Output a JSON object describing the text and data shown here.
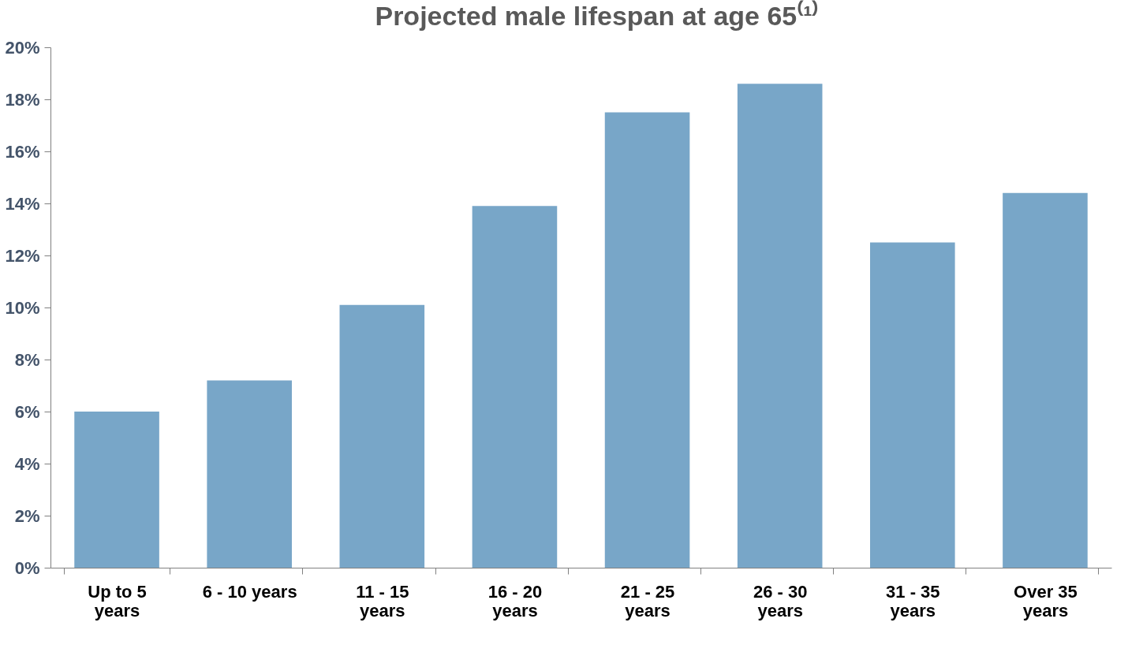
{
  "chart_data": {
    "type": "bar",
    "title": "Projected male lifespan at age 65⁽¹⁾",
    "categories": [
      "Up to 5 years",
      "6 - 10 years",
      "11 - 15 years",
      "16 - 20 years",
      "21 - 25 years",
      "26 - 30 years",
      "31 - 35 years",
      "Over 35 years"
    ],
    "values": [
      6.0,
      7.2,
      10.1,
      13.9,
      17.5,
      18.6,
      12.5,
      14.4
    ],
    "color": "#78a6c8",
    "ylim": [
      0,
      20
    ],
    "yticks": [
      {
        "value": 0,
        "label": "0%"
      },
      {
        "value": 2,
        "label": "2%"
      },
      {
        "value": 4,
        "label": "4%"
      },
      {
        "value": 6,
        "label": "6%"
      },
      {
        "value": 8,
        "label": "8%"
      },
      {
        "value": 10,
        "label": "10%"
      },
      {
        "value": 12,
        "label": "12%"
      },
      {
        "value": 14,
        "label": "14%"
      },
      {
        "value": 16,
        "label": "16%"
      },
      {
        "value": 18,
        "label": "18%"
      },
      {
        "value": 20,
        "label": "20%"
      }
    ],
    "grid": false
  }
}
